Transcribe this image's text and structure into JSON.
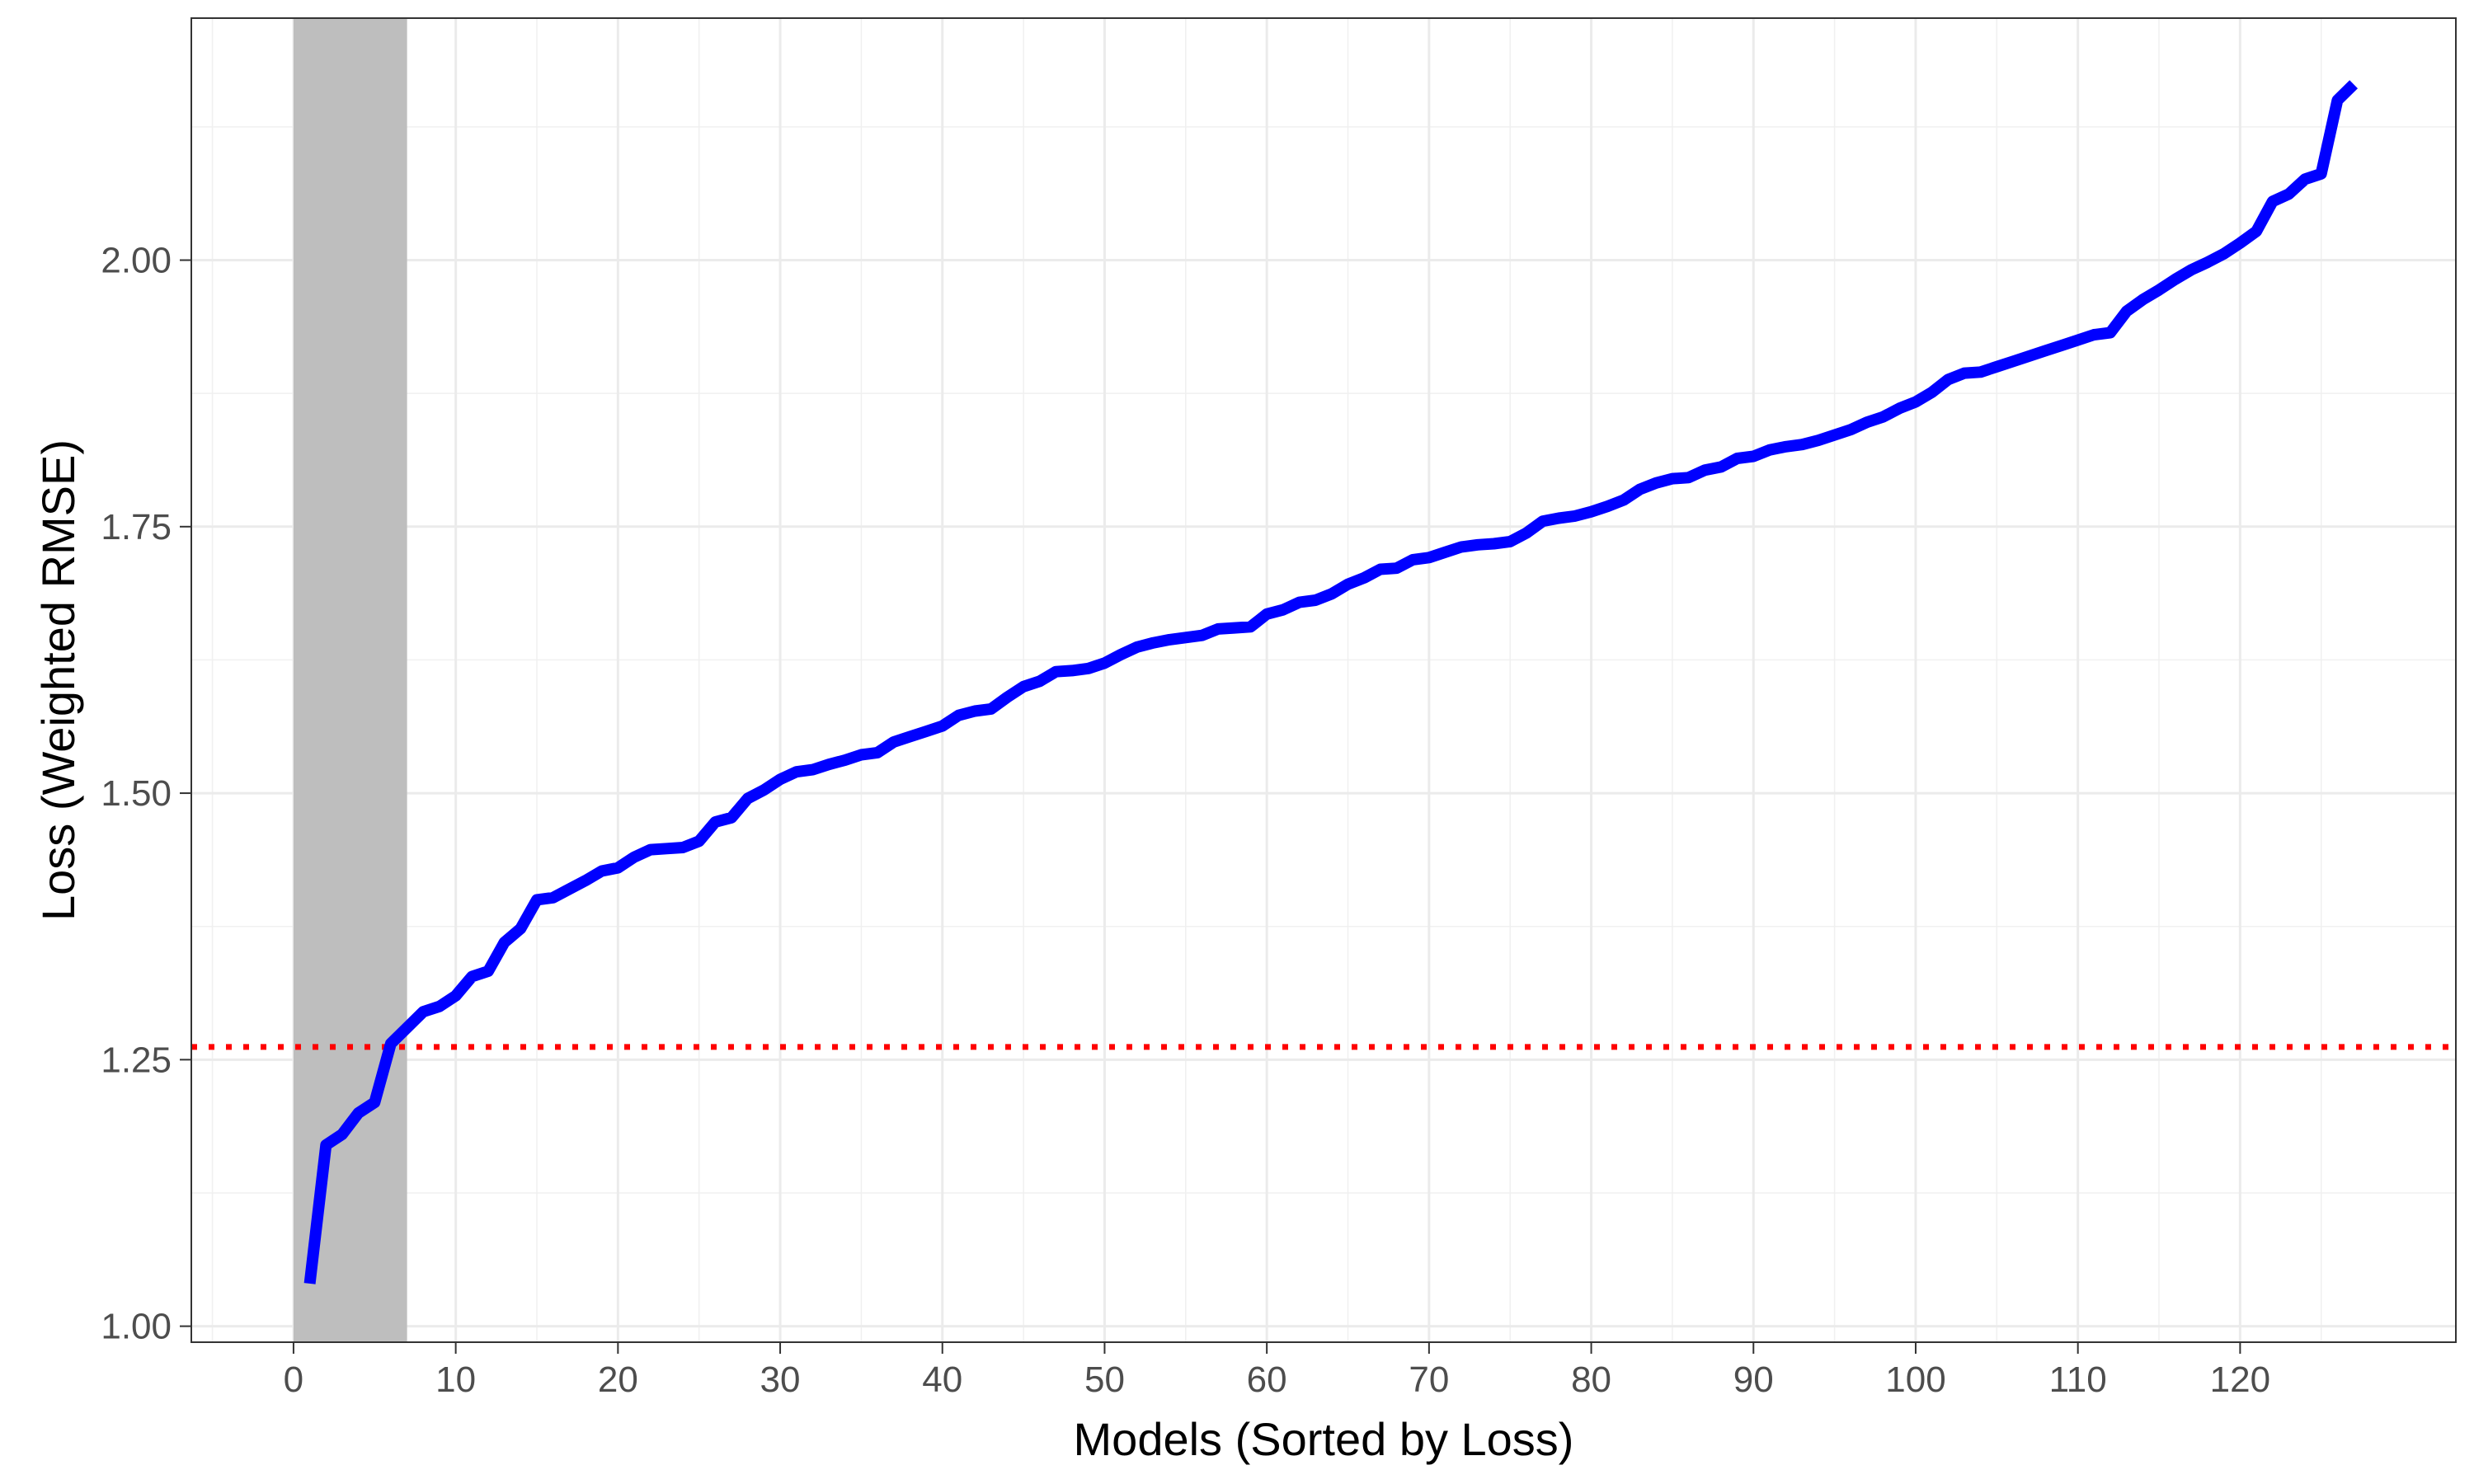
{
  "chart_data": {
    "type": "line",
    "title": "",
    "xlabel": "Models (Sorted by Loss)",
    "ylabel": "Loss (Weighted RMSE)",
    "xlim": [
      -6.3,
      133.3
    ],
    "ylim": [
      0.985,
      2.227
    ],
    "x_ticks": [
      0,
      10,
      20,
      30,
      40,
      50,
      60,
      70,
      80,
      90,
      100,
      110,
      120
    ],
    "x_tick_labels": [
      "0",
      "10",
      "20",
      "30",
      "40",
      "50",
      "60",
      "70",
      "80",
      "90",
      "100",
      "110",
      "120"
    ],
    "y_ticks": [
      1.0,
      1.25,
      1.5,
      1.75,
      2.0
    ],
    "y_tick_labels": [
      "1.00",
      "1.25",
      "1.50",
      "1.75",
      "2.00"
    ],
    "grid": true,
    "shaded_region": {
      "x_start": 0,
      "x_end": 7,
      "color": "#bebebe"
    },
    "reference_line": {
      "y": 1.262,
      "color": "#ff0000",
      "style": "dotted"
    },
    "series": [
      {
        "color": "#0000ff",
        "x": [
          1,
          2,
          3,
          4,
          5,
          6,
          7,
          8,
          9,
          10,
          11,
          12,
          13,
          14,
          15,
          16,
          17,
          18,
          19,
          20,
          21,
          22,
          23,
          24,
          25,
          26,
          27,
          28,
          29,
          30,
          31,
          32,
          33,
          34,
          35,
          36,
          37,
          38,
          39,
          40,
          41,
          42,
          43,
          44,
          45,
          46,
          47,
          48,
          49,
          50,
          51,
          52,
          53,
          54,
          55,
          56,
          57,
          58,
          59,
          60,
          61,
          62,
          63,
          64,
          65,
          66,
          67,
          68,
          69,
          70,
          71,
          72,
          73,
          74,
          75,
          76,
          77,
          78,
          79,
          80,
          81,
          82,
          83,
          84,
          85,
          86,
          87,
          88,
          89,
          90,
          91,
          92,
          93,
          94,
          95,
          96,
          97,
          98,
          99,
          100,
          101,
          102,
          103,
          104,
          105,
          106,
          107,
          108,
          109,
          110,
          111,
          112,
          113,
          114,
          115,
          116,
          117,
          118,
          119,
          120,
          121,
          122,
          123,
          124,
          125,
          126,
          127
        ],
        "values": [
          1.04,
          1.17,
          1.18,
          1.2,
          1.21,
          1.265,
          1.28,
          1.295,
          1.3,
          1.31,
          1.328,
          1.333,
          1.36,
          1.373,
          1.4,
          1.402,
          1.41,
          1.418,
          1.427,
          1.43,
          1.44,
          1.447,
          1.448,
          1.449,
          1.455,
          1.473,
          1.477,
          1.495,
          1.503,
          1.513,
          1.52,
          1.522,
          1.527,
          1.531,
          1.536,
          1.538,
          1.548,
          1.553,
          1.558,
          1.563,
          1.573,
          1.577,
          1.579,
          1.59,
          1.6,
          1.605,
          1.614,
          1.615,
          1.617,
          1.622,
          1.63,
          1.637,
          1.641,
          1.644,
          1.646,
          1.648,
          1.654,
          1.655,
          1.656,
          1.668,
          1.672,
          1.679,
          1.681,
          1.687,
          1.696,
          1.702,
          1.71,
          1.711,
          1.719,
          1.721,
          1.726,
          1.731,
          1.733,
          1.734,
          1.736,
          1.744,
          1.755,
          1.758,
          1.76,
          1.764,
          1.769,
          1.775,
          1.785,
          1.791,
          1.795,
          1.796,
          1.803,
          1.806,
          1.814,
          1.816,
          1.822,
          1.825,
          1.827,
          1.831,
          1.836,
          1.841,
          1.848,
          1.853,
          1.861,
          1.867,
          1.876,
          1.888,
          1.894,
          1.895,
          1.9,
          1.905,
          1.91,
          1.915,
          1.92,
          1.925,
          1.93,
          1.932,
          1.952,
          1.963,
          1.972,
          1.982,
          1.991,
          1.998,
          2.006,
          2.016,
          2.027,
          2.055,
          2.062,
          2.076,
          2.081,
          2.15,
          2.165
        ]
      }
    ]
  }
}
